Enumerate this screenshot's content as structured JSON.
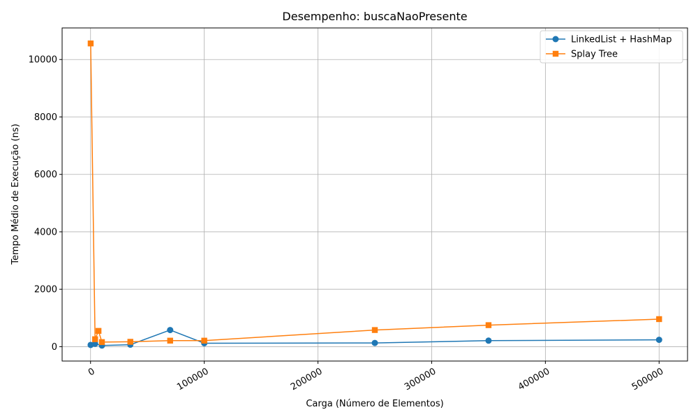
{
  "chart_data": {
    "type": "line",
    "title": "Desempenho: buscaNaoPresente",
    "xlabel": "Carga (Número de Elementos)",
    "ylabel": "Tempo Médio de Execução (ns)",
    "xlim": [
      -25000,
      525000
    ],
    "ylim": [
      -500,
      11100
    ],
    "xticks": [
      0,
      100000,
      200000,
      300000,
      400000,
      500000
    ],
    "xtick_labels": [
      "0",
      "100000",
      "200000",
      "300000",
      "400000",
      "500000"
    ],
    "yticks": [
      0,
      2000,
      4000,
      6000,
      8000,
      10000
    ],
    "ytick_labels": [
      "0",
      "2000",
      "4000",
      "6000",
      "8000",
      "10000"
    ],
    "grid": true,
    "legend_position": "top-right",
    "series": [
      {
        "name": "LinkedList + HashMap",
        "color": "#1f77b4",
        "marker": "circle",
        "x": [
          100,
          4000,
          10000,
          35000,
          70000,
          100000,
          250000,
          350000,
          500000
        ],
        "y": [
          60,
          100,
          40,
          70,
          580,
          120,
          130,
          210,
          240
        ]
      },
      {
        "name": "Splay Tree",
        "color": "#ff7f0e",
        "marker": "square",
        "x": [
          100,
          4000,
          7000,
          10000,
          35000,
          70000,
          100000,
          250000,
          350000,
          500000
        ],
        "y": [
          10560,
          260,
          550,
          160,
          170,
          210,
          210,
          580,
          750,
          960
        ]
      }
    ]
  }
}
